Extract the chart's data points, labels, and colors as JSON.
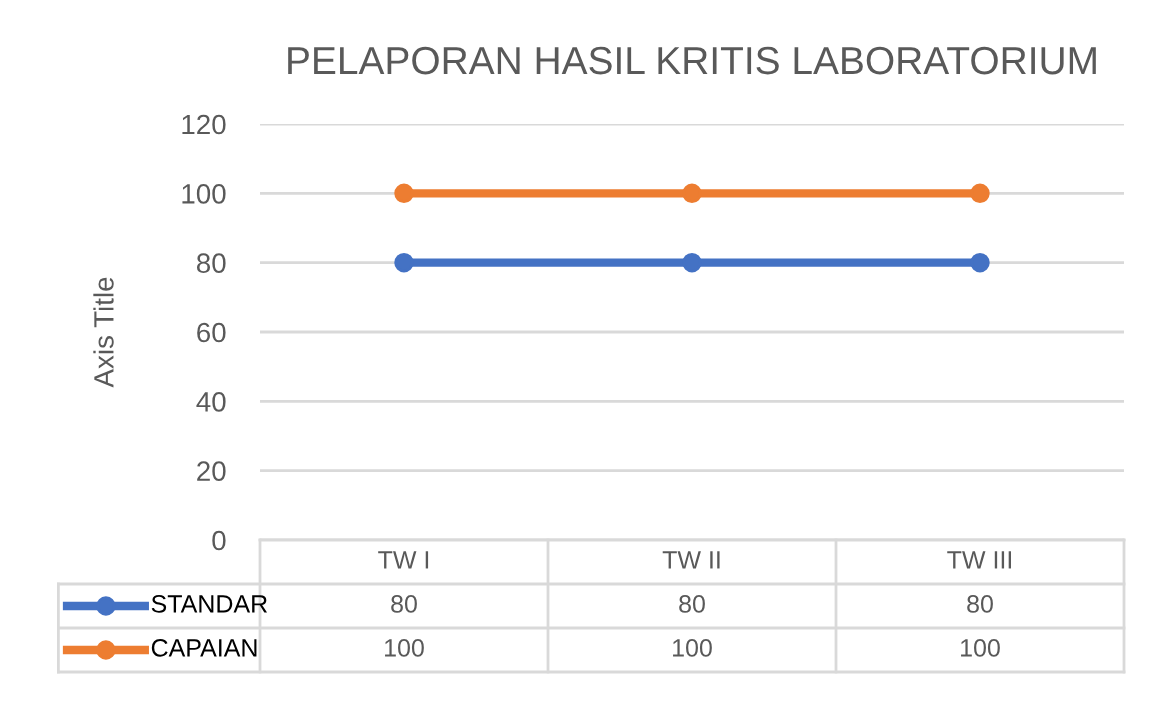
{
  "chart_data": {
    "type": "line",
    "title": "PELAPORAN HASIL KRITIS LABORATORIUM",
    "ylabel": "Axis Title",
    "categories": [
      "TW I",
      "TW II",
      "TW III"
    ],
    "series": [
      {
        "name": "STANDAR",
        "color": "#4472c4",
        "values": [
          80,
          80,
          80
        ]
      },
      {
        "name": "CAPAIAN",
        "color": "#ed7d31",
        "values": [
          100,
          100,
          100
        ]
      }
    ],
    "ylim": [
      0,
      120
    ],
    "yticks": [
      0,
      20,
      40,
      60,
      80,
      100,
      120
    ],
    "grid": "y",
    "legend": "bottom",
    "marker": "circle",
    "line_style": "solid",
    "data_labels": true
  }
}
